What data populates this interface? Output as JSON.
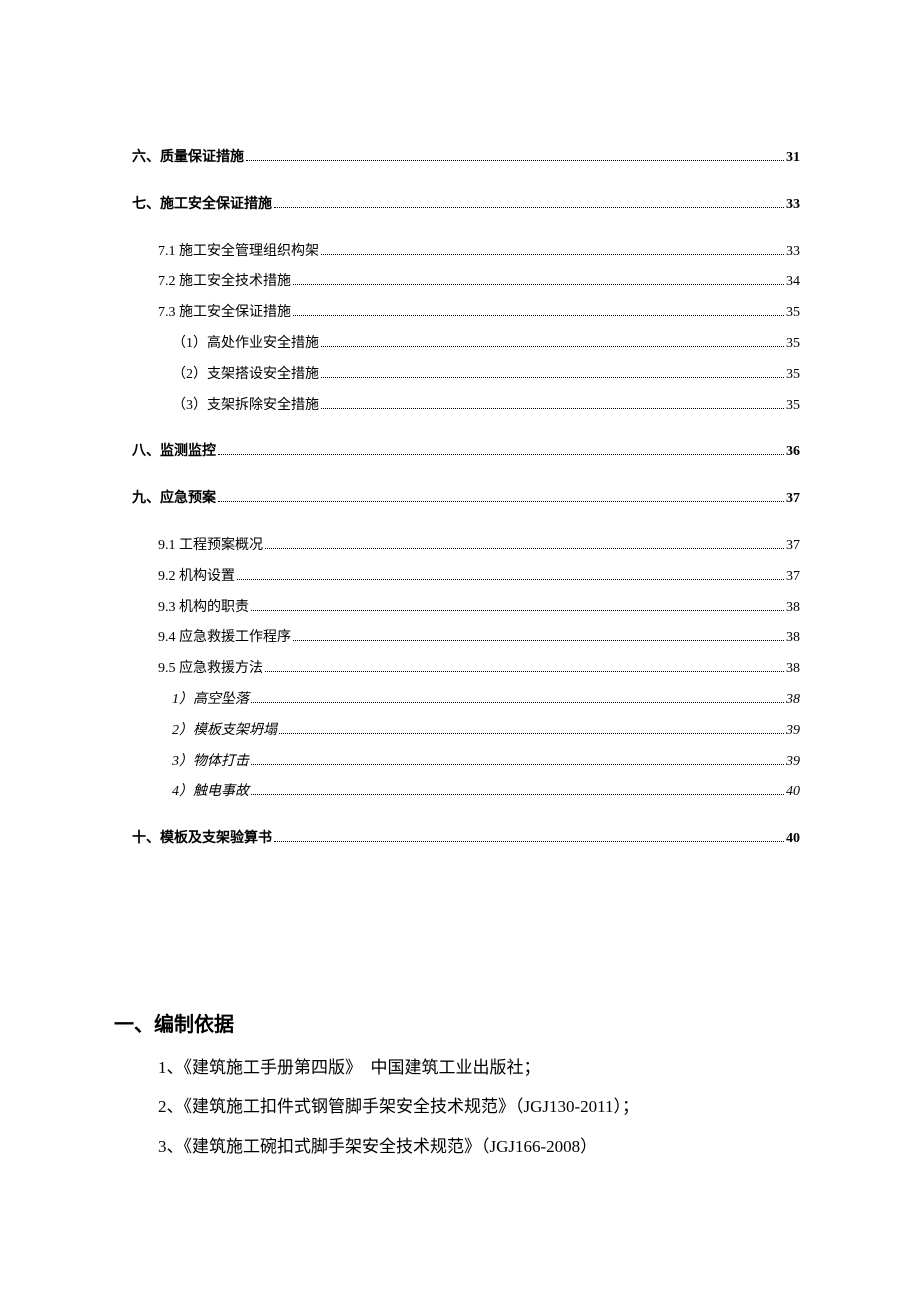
{
  "toc": {
    "entries": [
      {
        "level": "section",
        "label": "六、质量保证措施",
        "page": "31"
      },
      {
        "level": "section",
        "label": "七、施工安全保证措施",
        "page": "33"
      },
      {
        "level": "sub",
        "label": "7.1 施工安全管理组织构架",
        "page": "33"
      },
      {
        "level": "sub",
        "label": "7.2 施工安全技术措施",
        "page": "34"
      },
      {
        "level": "sub",
        "label": "7.3 施工安全保证措施",
        "page": "35"
      },
      {
        "level": "subsub",
        "label": "（1）高处作业安全措施",
        "page": "35"
      },
      {
        "level": "subsub",
        "label": "（2）支架搭设安全措施",
        "page": "35"
      },
      {
        "level": "subsub",
        "label": "（3）支架拆除安全措施",
        "page": "35"
      },
      {
        "level": "section",
        "label": "八、监测监控",
        "page": "36"
      },
      {
        "level": "section",
        "label": "九、应急预案",
        "page": "37"
      },
      {
        "level": "sub",
        "label": "9.1 工程预案概况",
        "page": "37"
      },
      {
        "level": "sub",
        "label": "9.2 机构设置",
        "page": "37"
      },
      {
        "level": "sub",
        "label": "9.3 机构的职责",
        "page": "38"
      },
      {
        "level": "sub",
        "label": "9.4 应急救援工作程序",
        "page": "38"
      },
      {
        "level": "sub",
        "label": "9.5 应急救援方法",
        "page": "38"
      },
      {
        "level": "subitalic",
        "label": "1）高空坠落",
        "page": "38"
      },
      {
        "level": "subitalic",
        "label": "2）模板支架坍塌",
        "page": "39"
      },
      {
        "level": "subitalic",
        "label": "3）物体打击",
        "page": "39"
      },
      {
        "level": "subitalic",
        "label": "4）触电事故",
        "page": "40"
      },
      {
        "level": "section",
        "label": "十、模板及支架验算书",
        "page": "40"
      }
    ]
  },
  "body": {
    "heading": "一、编制依据",
    "lines": [
      "1、《建筑施工手册第四版》　中国建筑工业出版社；",
      "2、《建筑施工扣件式钢管脚手架安全技术规范》（JGJ130-2011）；",
      "3、《建筑施工碗扣式脚手架安全技术规范》（JGJ166-2008）"
    ]
  }
}
